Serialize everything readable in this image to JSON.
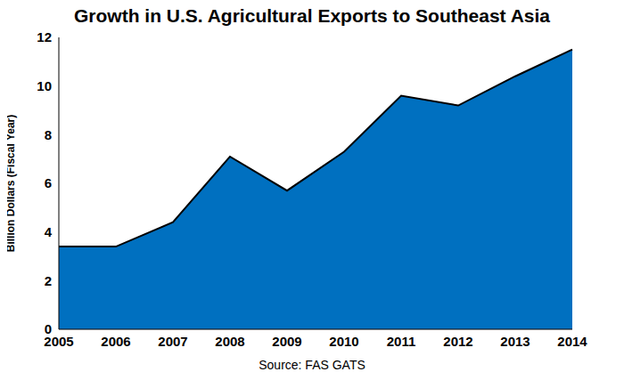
{
  "chart_data": {
    "type": "area",
    "title": "Growth in U.S. Agricultural Exports to Southeast Asia",
    "y_label": "Billion Dollars (Fiscal Year)",
    "annotations": [
      "Source: FAS GATS"
    ],
    "categories": [
      "2005",
      "2006",
      "2007",
      "2008",
      "2009",
      "2010",
      "2011",
      "2012",
      "2013",
      "2014"
    ],
    "values": [
      3.4,
      3.4,
      4.4,
      7.1,
      5.7,
      7.3,
      9.6,
      9.2,
      10.4,
      11.5
    ],
    "color": "#0070c0",
    "ylim": [
      0,
      12
    ],
    "yticks": [
      0,
      2,
      4,
      6,
      8,
      10,
      12
    ],
    "grid": false
  }
}
